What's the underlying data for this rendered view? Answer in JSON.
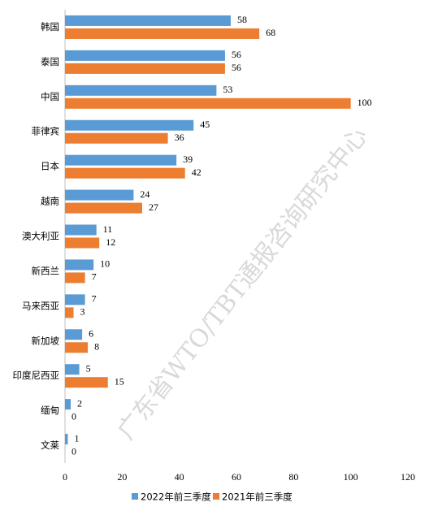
{
  "chart_data": {
    "type": "hbar",
    "categories": [
      "韩国",
      "泰国",
      "中国",
      "菲律宾",
      "日本",
      "越南",
      "澳大利亚",
      "新西兰",
      "马来西亚",
      "新加坡",
      "印度尼西亚",
      "缅甸",
      "文莱"
    ],
    "series": [
      {
        "name": "2022年前三季度",
        "color": "#5b9bd5",
        "values": [
          58,
          56,
          53,
          45,
          39,
          24,
          11,
          10,
          7,
          6,
          5,
          2,
          1
        ]
      },
      {
        "name": "2021年前三季度",
        "color": "#ed7d31",
        "values": [
          68,
          56,
          100,
          36,
          42,
          27,
          12,
          7,
          3,
          8,
          15,
          0,
          0
        ]
      }
    ],
    "xlim": [
      0,
      120
    ],
    "xticks": [
      0,
      20,
      40,
      60,
      80,
      100,
      120
    ],
    "legend": "bottom",
    "watermark": "广东省WTO/TBT通报咨询研究中心"
  }
}
